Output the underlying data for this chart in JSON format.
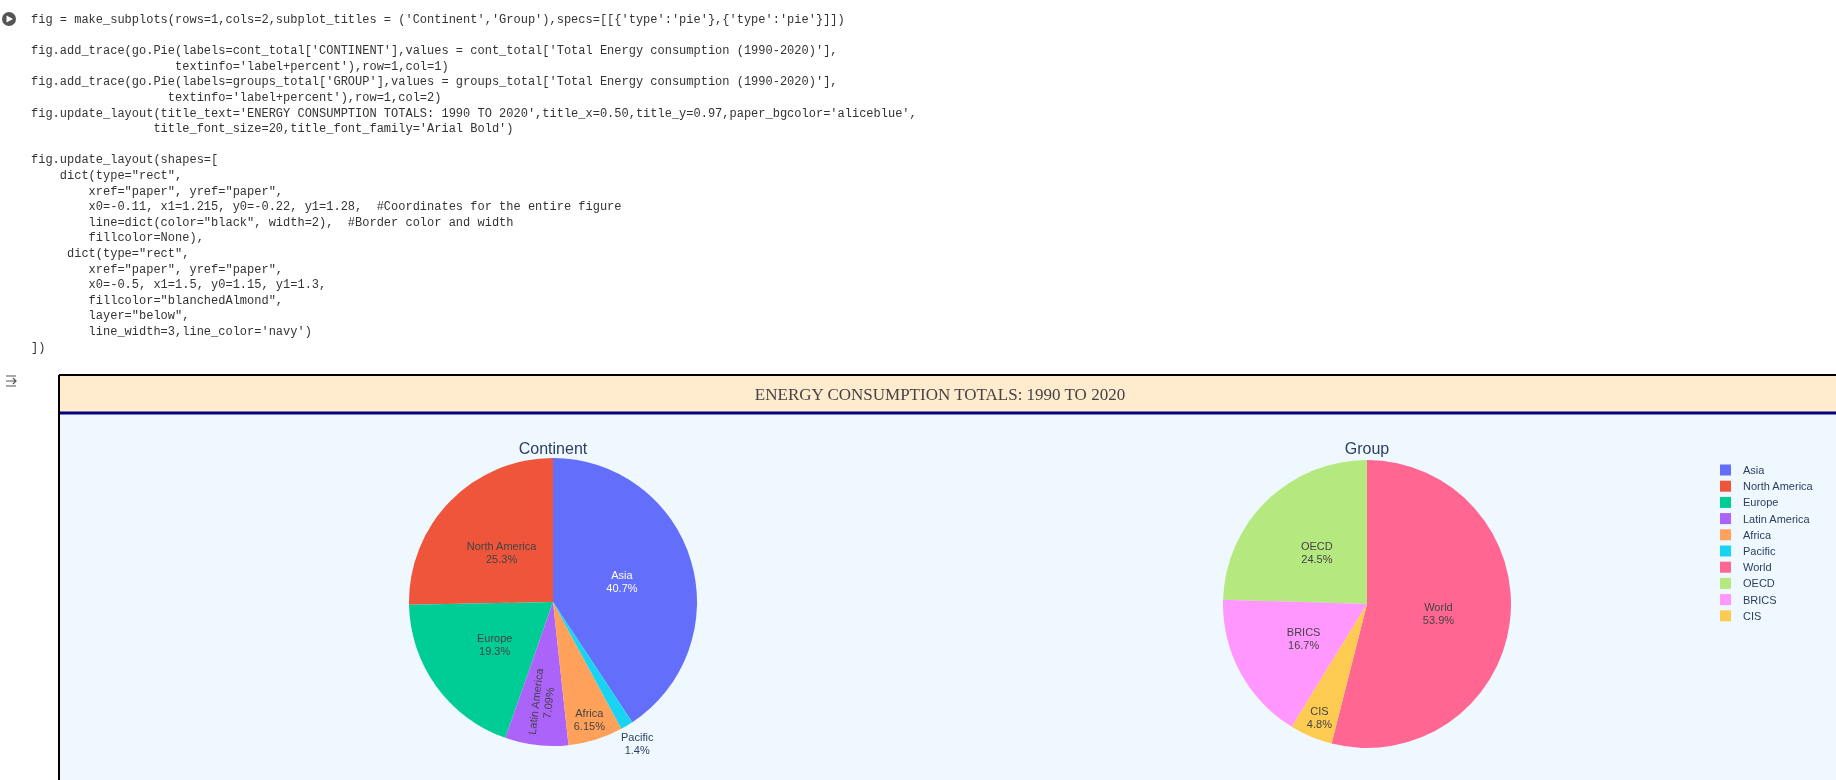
{
  "chart_data": [
    {
      "type": "other",
      "annotations": [
        "fig = make_subplots(rows=1,cols=2,subplot_titles = ('Continent','Group'),specs=[[{'type':'pie'},{'type':'pie'}]])",
        "fig.add_trace(go.Pie(labels=cont_total['CONTINENT'],values = cont_total['Total Energy consumption (1990-2020)'],\n                    textinfo='label+percent'),row=1,col=1)\nfig.add_trace(go.Pie(labels=groups_total['GROUP'],values = groups_total['Total Energy consumption (1990-2020)'],\n                   textinfo='label+percent'),row=1,col=2)\nfig.update_layout(title_text='ENERGY CONSUMPTION TOTALS: 1990 TO 2020',title_x=0.50,title_y=0.97,paper_bgcolor='aliceblue',\n                 title_font_size=20,title_font_family='Arial Bold')",
        "fig.update_layout(shapes=[\n    dict(type=\"rect\",\n        xref=\"paper\", yref=\"paper\",\n        x0=-0.11, x1=1.215, y0=-0.22, y1=1.28,  #Coordinates for the entire figure\n        line=dict(color=\"black\", width=2),  #Border color and width\n        fillcolor=None),\n     dict(type=\"rect\",\n        xref=\"paper\", yref=\"paper\",\n        x0=-0.5, x1=1.5, y0=1.15, y1=1.3,\n        fillcolor=\"blanchedAlmond\",\n        layer=\"below\",\n        line_width=3,line_color='navy')\n])"
      ]
    },
    {
      "type": "pie",
      "title": "ENERGY CONSUMPTION TOTALS: 1990 TO 2020",
      "subtitle": "Continent",
      "legend": "right",
      "categories": [
        "Asia",
        "North America",
        "Europe",
        "Latin America",
        "Africa",
        "Pacific"
      ],
      "values": [
        40.7,
        25.3,
        19.3,
        7.09,
        6.15,
        1.4
      ],
      "value_labels": [
        "40.7%",
        "25.3%",
        "19.3%",
        "7.09%",
        "6.15%",
        "1.4%"
      ],
      "colors": [
        "#636efa",
        "#ef553b",
        "#00cc96",
        "#ab63fa",
        "#ffa15a",
        "#19d3f3"
      ]
    },
    {
      "type": "pie",
      "title": "Group",
      "legend": "right",
      "categories": [
        "World",
        "OECD",
        "BRICS",
        "CIS"
      ],
      "values": [
        53.9,
        24.5,
        16.7,
        4.8
      ],
      "value_labels": [
        "53.9%",
        "24.5%",
        "16.7%",
        "4.8%"
      ],
      "colors": [
        "#ff6692",
        "#b6e880",
        "#ff97ff",
        "#fecb52"
      ]
    }
  ]
}
